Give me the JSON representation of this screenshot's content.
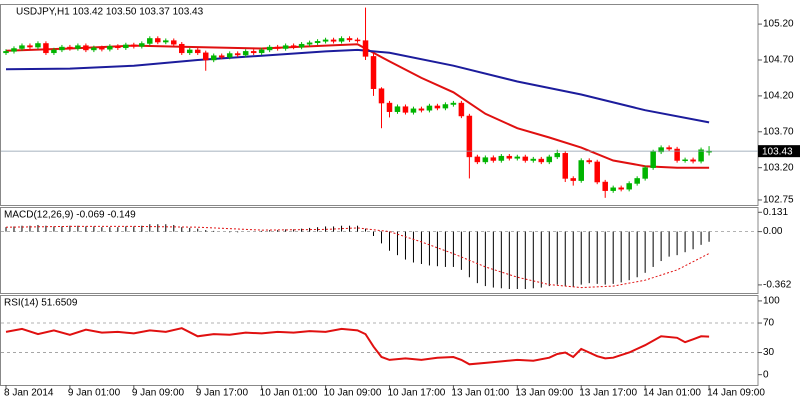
{
  "chart_data": [
    {
      "type": "candlestick",
      "title": "USDJPY,H1  103.42 103.50 103.37 103.43",
      "xlim": [
        -0.625,
        94.125
      ],
      "ylim": [
        102.68,
        105.48
      ],
      "yticks": [
        {
          "value": 105.2,
          "label": "105.20"
        },
        {
          "value": 104.7,
          "label": "104.70"
        },
        {
          "value": 104.2,
          "label": "104.20"
        },
        {
          "value": 103.7,
          "label": "103.70"
        },
        {
          "value": 103.2,
          "label": "103.20"
        },
        102.75
      ],
      "up_color": "#00b400",
      "down_color": "#ff0000",
      "open": [
        104.8,
        104.82,
        104.86,
        104.9,
        104.88,
        104.93,
        104.8,
        104.84,
        104.88,
        104.86,
        104.9,
        104.84,
        104.87,
        104.85,
        104.89,
        104.87,
        104.91,
        104.89,
        104.93,
        105.0,
        104.95,
        104.97,
        104.92,
        104.8,
        104.84,
        104.8,
        104.7,
        104.76,
        104.74,
        104.79,
        104.77,
        104.82,
        104.8,
        104.84,
        104.88,
        104.86,
        104.9,
        104.88,
        104.92,
        104.94,
        104.96,
        104.98,
        104.96,
        105.0,
        104.98,
        104.97,
        104.75,
        104.3,
        104.1,
        103.98,
        104.05,
        103.97,
        104.02,
        104.0,
        104.06,
        104.03,
        104.08,
        104.1,
        103.92,
        103.35,
        103.28,
        103.34,
        103.3,
        103.36,
        103.33,
        103.35,
        103.3,
        103.32,
        103.28,
        103.35,
        103.4,
        103.05,
        103.02,
        103.3,
        103.28,
        103.0,
        102.88,
        102.92,
        102.9,
        102.98,
        103.05,
        103.2,
        103.42,
        103.48,
        103.46,
        103.3,
        103.31,
        103.29,
        103.42
      ],
      "high": [
        104.85,
        104.89,
        104.93,
        104.93,
        104.96,
        104.96,
        104.87,
        104.91,
        104.91,
        104.93,
        104.93,
        104.9,
        104.9,
        104.92,
        104.92,
        104.94,
        104.94,
        104.96,
        105.03,
        105.03,
        105.0,
        105.0,
        104.95,
        104.87,
        104.87,
        104.83,
        104.79,
        104.79,
        104.82,
        104.82,
        104.85,
        104.85,
        104.87,
        104.91,
        104.91,
        104.93,
        104.93,
        104.95,
        104.97,
        104.99,
        105.01,
        105.01,
        105.03,
        105.03,
        105.01,
        105.43,
        104.8,
        104.32,
        104.13,
        104.08,
        104.08,
        104.05,
        104.05,
        104.09,
        104.09,
        104.11,
        104.13,
        104.13,
        103.95,
        103.38,
        103.37,
        103.37,
        103.39,
        103.39,
        103.38,
        103.38,
        103.35,
        103.35,
        103.38,
        103.45,
        103.43,
        103.08,
        103.33,
        103.33,
        103.31,
        103.03,
        102.95,
        102.95,
        103.01,
        103.08,
        103.23,
        103.45,
        103.51,
        103.51,
        103.49,
        103.34,
        103.34,
        103.48,
        103.5
      ],
      "low": [
        104.77,
        104.79,
        104.83,
        104.85,
        104.85,
        104.77,
        104.77,
        104.81,
        104.83,
        104.83,
        104.81,
        104.81,
        104.82,
        104.82,
        104.84,
        104.84,
        104.86,
        104.86,
        104.9,
        104.92,
        104.92,
        104.89,
        104.77,
        104.77,
        104.77,
        104.55,
        104.67,
        104.71,
        104.71,
        104.74,
        104.74,
        104.77,
        104.77,
        104.81,
        104.83,
        104.83,
        104.85,
        104.85,
        104.89,
        104.91,
        104.93,
        104.93,
        104.93,
        104.95,
        104.94,
        104.7,
        104.2,
        103.75,
        103.9,
        103.95,
        103.94,
        103.94,
        103.97,
        103.97,
        104.0,
        104.0,
        104.05,
        103.89,
        103.05,
        103.25,
        103.25,
        103.27,
        103.27,
        103.3,
        103.3,
        103.27,
        103.27,
        103.25,
        103.25,
        103.32,
        103.0,
        102.95,
        102.99,
        103.25,
        102.97,
        102.78,
        102.85,
        102.87,
        102.87,
        102.95,
        103.02,
        103.17,
        103.39,
        103.43,
        103.27,
        103.27,
        103.26,
        103.26,
        103.37
      ],
      "close": [
        104.82,
        104.86,
        104.9,
        104.88,
        104.93,
        104.8,
        104.84,
        104.88,
        104.86,
        104.9,
        104.84,
        104.87,
        104.85,
        104.89,
        104.87,
        104.91,
        104.89,
        104.93,
        105.0,
        104.95,
        104.97,
        104.92,
        104.8,
        104.84,
        104.8,
        104.7,
        104.76,
        104.74,
        104.79,
        104.77,
        104.82,
        104.8,
        104.84,
        104.88,
        104.86,
        104.9,
        104.88,
        104.92,
        104.94,
        104.96,
        104.98,
        104.96,
        105.0,
        104.98,
        104.97,
        104.75,
        104.3,
        104.1,
        103.98,
        104.05,
        103.97,
        104.02,
        104.0,
        104.06,
        104.03,
        104.08,
        104.1,
        103.92,
        103.35,
        103.28,
        103.34,
        103.3,
        103.36,
        103.33,
        103.35,
        103.3,
        103.32,
        103.28,
        103.35,
        103.4,
        103.05,
        103.02,
        103.3,
        103.28,
        103.0,
        102.88,
        102.92,
        102.9,
        102.98,
        103.05,
        103.2,
        103.42,
        103.48,
        103.46,
        103.3,
        103.31,
        103.29,
        103.45,
        103.43
      ],
      "series": [
        {
          "color": "#e01010",
          "x": [
            0,
            8,
            16,
            24,
            32,
            40,
            44,
            48,
            52,
            56,
            60,
            64,
            68,
            72,
            76,
            80,
            84,
            88
          ],
          "values": [
            104.83,
            104.86,
            104.9,
            104.88,
            104.86,
            104.9,
            104.92,
            104.68,
            104.45,
            104.25,
            103.95,
            103.75,
            103.62,
            103.48,
            103.3,
            103.22,
            103.2,
            103.2
          ]
        },
        {
          "color": "#1c1c9c",
          "x": [
            0,
            8,
            16,
            24,
            32,
            40,
            44,
            48,
            56,
            64,
            72,
            80,
            88
          ],
          "values": [
            104.57,
            104.58,
            104.62,
            104.7,
            104.76,
            104.82,
            104.84,
            104.8,
            104.62,
            104.4,
            104.22,
            104.0,
            103.83
          ]
        }
      ]
    },
    {
      "type": "macd",
      "title": "MACD(12,26,9) -0.069 -0.149",
      "xlim": [
        -0.625,
        94.125
      ],
      "ylim": [
        -0.417,
        0.167
      ],
      "yticks": [
        0.131,
        {
          "value": 0,
          "label": "0.00"
        },
        -0.362
      ],
      "levels": [
        0
      ],
      "color": "#000000",
      "values": [
        0.03,
        0.035,
        0.04,
        0.04,
        0.045,
        0.04,
        0.035,
        0.035,
        0.04,
        0.04,
        0.035,
        0.035,
        0.03,
        0.03,
        0.03,
        0.035,
        0.035,
        0.04,
        0.05,
        0.05,
        0.05,
        0.045,
        0.03,
        0.025,
        0.02,
        0.01,
        0.005,
        0,
        -0.005,
        -0.005,
        0,
        0,
        0.005,
        0.01,
        0.01,
        0.015,
        0.015,
        0.02,
        0.025,
        0.03,
        0.035,
        0.035,
        0.04,
        0.04,
        0.04,
        0.02,
        -0.03,
        -0.08,
        -0.13,
        -0.16,
        -0.19,
        -0.21,
        -0.22,
        -0.23,
        -0.235,
        -0.24,
        -0.24,
        -0.26,
        -0.31,
        -0.35,
        -0.37,
        -0.38,
        -0.385,
        -0.39,
        -0.39,
        -0.39,
        -0.385,
        -0.38,
        -0.37,
        -0.36,
        -0.37,
        -0.375,
        -0.36,
        -0.35,
        -0.355,
        -0.36,
        -0.355,
        -0.345,
        -0.33,
        -0.31,
        -0.28,
        -0.24,
        -0.2,
        -0.17,
        -0.16,
        -0.14,
        -0.12,
        -0.09,
        -0.069
      ],
      "series": [
        {
          "color": "#e01010",
          "dashed": true,
          "x": [
            0,
            8,
            16,
            24,
            32,
            40,
            44,
            48,
            52,
            56,
            60,
            64,
            68,
            72,
            76,
            80,
            84,
            88
          ],
          "values": [
            0.03,
            0.035,
            0.035,
            0.03,
            0.01,
            0.015,
            0.025,
            0.0,
            -0.07,
            -0.15,
            -0.24,
            -0.31,
            -0.36,
            -0.38,
            -0.37,
            -0.33,
            -0.26,
            -0.149
          ]
        }
      ]
    },
    {
      "type": "line",
      "title": "RSI(14) 51.6509",
      "xlim": [
        -0.625,
        94.125
      ],
      "ylim": [
        -14,
        108
      ],
      "yticks": [
        100,
        70,
        30,
        0
      ],
      "levels": [
        70,
        30
      ],
      "xticks": [
        {
          "value": 0,
          "label": "8 Jan 2014"
        },
        {
          "value": 8,
          "label": "9 Jan 01:00"
        },
        {
          "value": 16,
          "label": "9 Jan 09:00"
        },
        {
          "value": 24,
          "label": "9 Jan 17:00"
        },
        {
          "value": 32,
          "label": "10 Jan 01:00"
        },
        {
          "value": 40,
          "label": "10 Jan 09:00"
        },
        {
          "value": 48,
          "label": "10 Jan 17:00"
        },
        {
          "value": 56,
          "label": "13 Jan 01:00"
        },
        {
          "value": 64,
          "label": "13 Jan 09:00"
        },
        {
          "value": 72,
          "label": "13 Jan 17:00"
        },
        {
          "value": 80,
          "label": "14 Jan 01:00"
        },
        {
          "value": 88,
          "label": "14 Jan 09:00"
        }
      ],
      "series": [
        {
          "color": "#e01010",
          "x": [
            0,
            2,
            4,
            6,
            8,
            10,
            12,
            14,
            16,
            18,
            20,
            22,
            24,
            26,
            28,
            30,
            32,
            34,
            36,
            38,
            40,
            42,
            44,
            45,
            46,
            47,
            48,
            50,
            52,
            54,
            56,
            57,
            58,
            60,
            62,
            64,
            66,
            68,
            69,
            70,
            71,
            72,
            74,
            75,
            76,
            78,
            80,
            82,
            84,
            85,
            86,
            87,
            88
          ],
          "values": [
            58,
            62,
            55,
            60,
            54,
            61,
            57,
            58,
            56,
            60,
            58,
            63,
            52,
            55,
            54,
            57,
            56,
            58,
            57,
            59,
            58,
            62,
            60,
            55,
            38,
            24,
            20,
            22,
            20,
            23,
            24,
            20,
            14,
            16,
            18,
            20,
            19,
            23,
            28,
            30,
            24,
            35,
            25,
            22,
            23,
            30,
            40,
            52,
            50,
            44,
            48,
            52,
            51.6509
          ]
        }
      ]
    }
  ]
}
